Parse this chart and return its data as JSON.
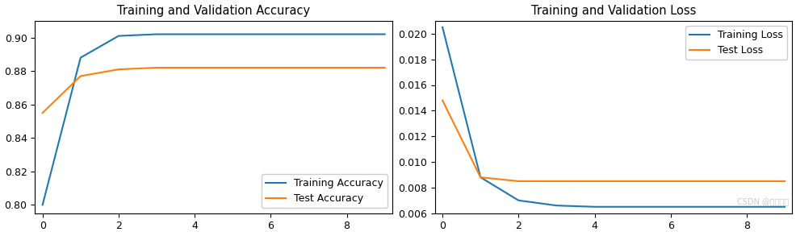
{
  "acc_title": "Training and Validation Accuracy",
  "loss_title": "Training and Validation Loss",
  "epochs": [
    0,
    1,
    2,
    3,
    4,
    5,
    6,
    7,
    8,
    9
  ],
  "train_acc": [
    0.8,
    0.888,
    0.901,
    0.902,
    0.902,
    0.902,
    0.902,
    0.902,
    0.902,
    0.902
  ],
  "test_acc": [
    0.855,
    0.877,
    0.881,
    0.882,
    0.882,
    0.882,
    0.882,
    0.882,
    0.882,
    0.882
  ],
  "train_loss": [
    0.0205,
    0.0088,
    0.007,
    0.0066,
    0.0065,
    0.0065,
    0.0065,
    0.0065,
    0.0065,
    0.0065
  ],
  "test_loss": [
    0.0148,
    0.0088,
    0.0085,
    0.0085,
    0.0085,
    0.0085,
    0.0085,
    0.0085,
    0.0085,
    0.0085
  ],
  "train_acc_color": "#1f77b4",
  "test_acc_color": "#ff7f0e",
  "train_loss_color": "#1f77b4",
  "test_loss_color": "#ff7f0e",
  "acc_legend": [
    "Training Accuracy",
    "Test Accuracy"
  ],
  "loss_legend": [
    "Training Loss",
    "Test Loss"
  ],
  "acc_ylim": [
    0.795,
    0.91
  ],
  "loss_ylim": [
    0.006,
    0.021
  ],
  "xticks": [
    0,
    2,
    4,
    6,
    8
  ],
  "xlim": [
    -0.2,
    9.2
  ],
  "watermark": "CSDN @大地之灯",
  "watermark_color": "#c0c0c0",
  "bg_color": "#ffffff",
  "title_fontsize": 10.5,
  "legend_fontsize": 9,
  "tick_fontsize": 9
}
